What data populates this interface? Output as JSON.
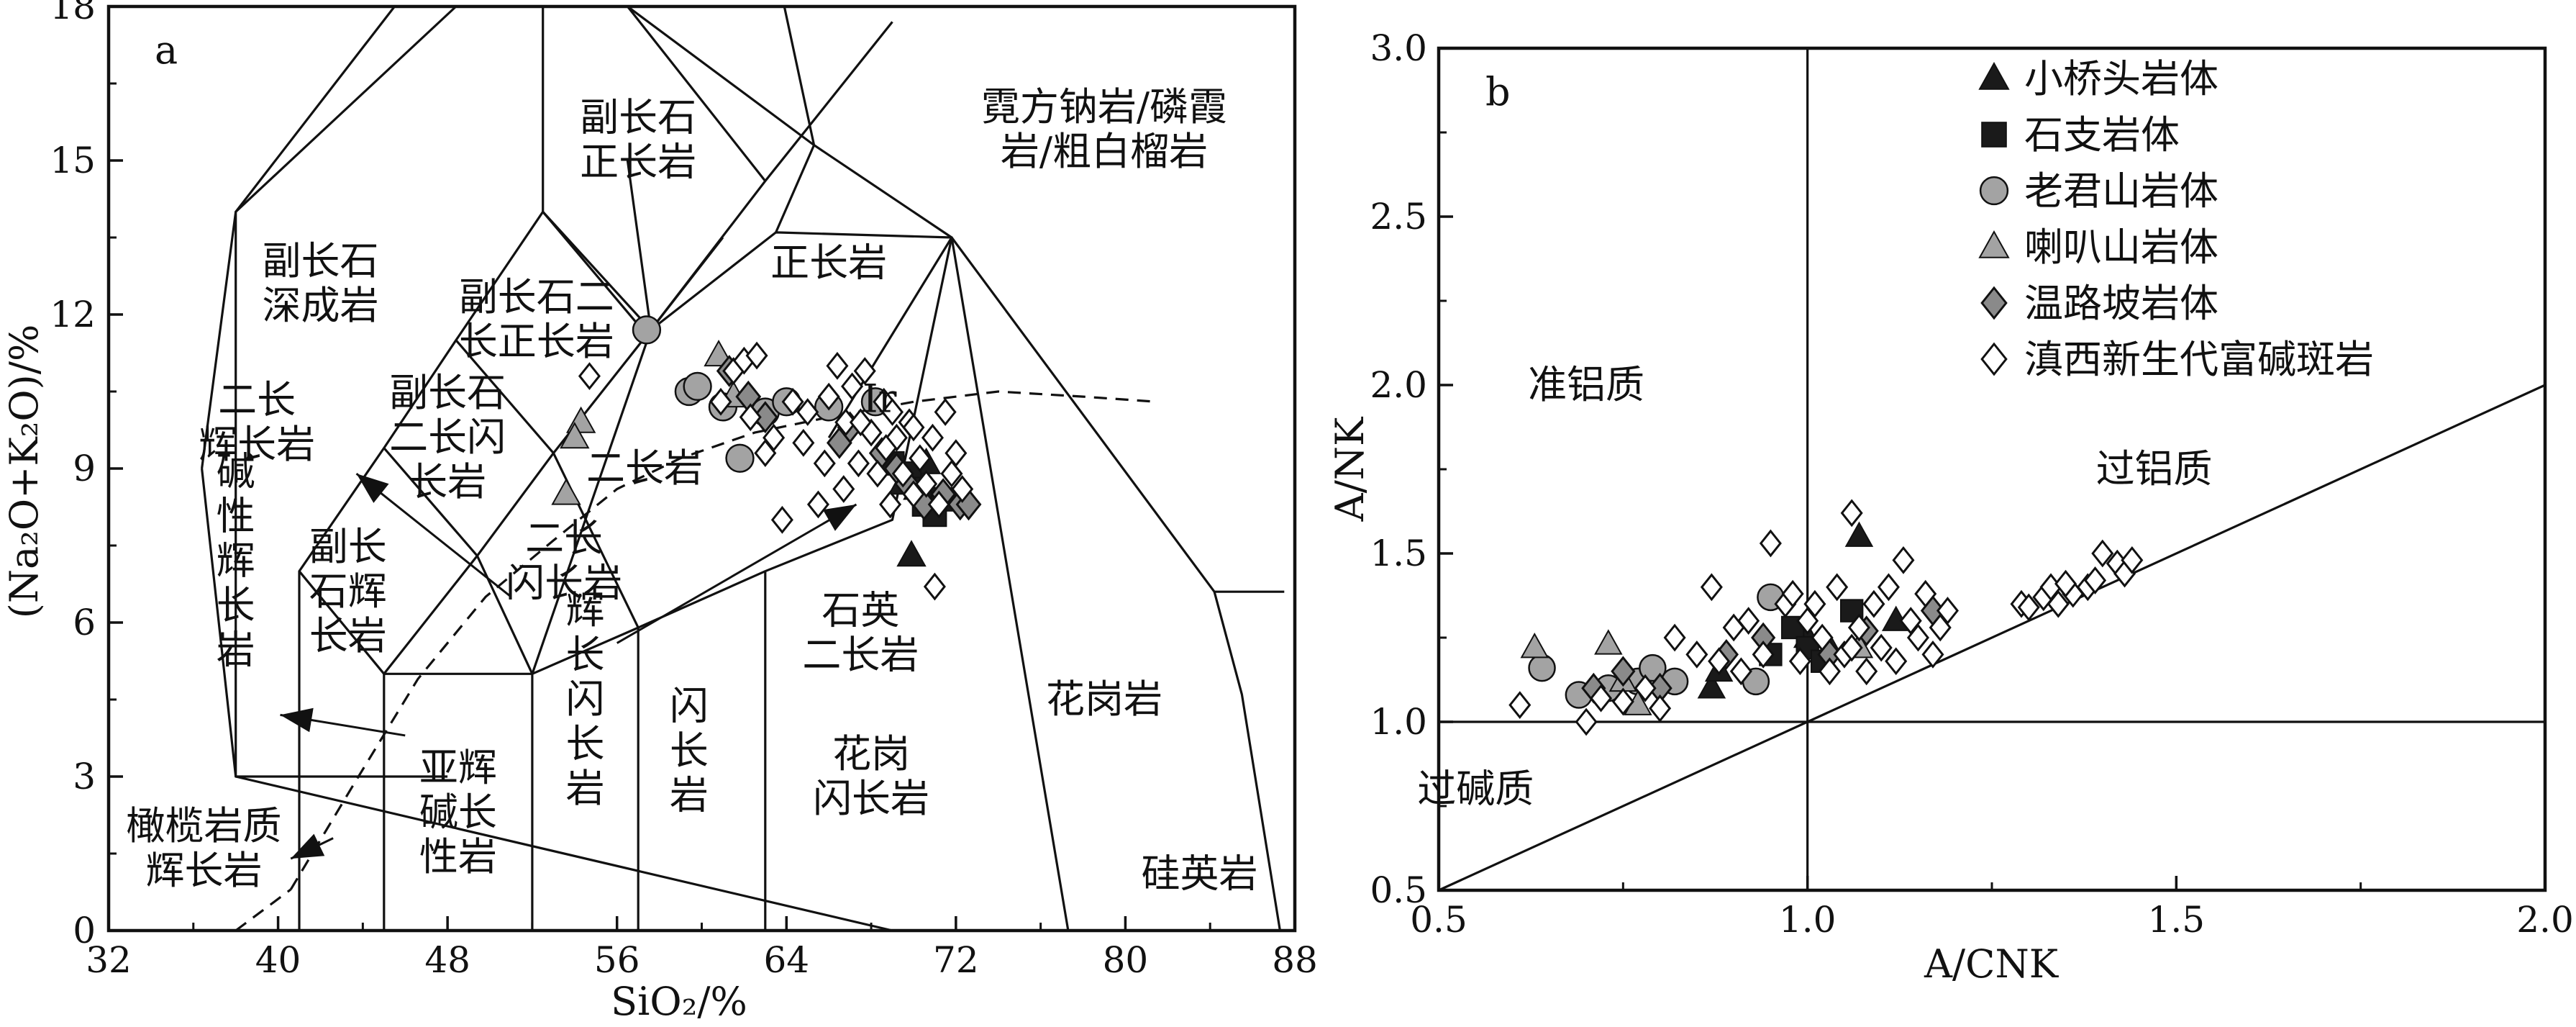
{
  "chart_data": [
    {
      "type": "scatter",
      "panel_label": "a",
      "xlabel": "SiO₂/%",
      "ylabel": "(Na₂O+K₂O)/%",
      "xlim": [
        32,
        88
      ],
      "ylim": [
        0,
        18
      ],
      "xticks": [
        32,
        40,
        48,
        56,
        64,
        72,
        80,
        88
      ],
      "yticks": [
        0,
        3,
        6,
        9,
        12,
        15,
        18
      ],
      "grid": false,
      "fields": [
        {
          "label": "霓方钠岩/磷霞岩/粗白榴岩",
          "lines": [
            "霓方钠岩/磷霞",
            "岩/粗白榴岩"
          ],
          "at": [
            79,
            15.6
          ]
        },
        {
          "label": "副长石正长岩",
          "lines": [
            "副长石",
            "正长岩"
          ],
          "at": [
            57,
            15.4
          ]
        },
        {
          "label": "副长石深成岩",
          "lines": [
            "副长石",
            "深成岩"
          ],
          "at": [
            42,
            12.6
          ]
        },
        {
          "label": "正长岩",
          "lines": [
            "正长岩"
          ],
          "at": [
            66,
            13
          ]
        },
        {
          "label": "副长石二长正长岩",
          "lines": [
            "副长石二",
            "长正长岩"
          ],
          "at": [
            52.2,
            11.9
          ]
        },
        {
          "label": "二长辉长岩",
          "lines": [
            "二长",
            "辉长岩"
          ],
          "at": [
            39,
            9.9
          ]
        },
        {
          "label": "副长石二长闪长岩",
          "lines": [
            "副长石",
            "二长闪",
            "长岩"
          ],
          "at": [
            48,
            9.6
          ]
        },
        {
          "label": "二长岩",
          "lines": [
            "二长岩"
          ],
          "at": [
            57.3,
            9
          ]
        },
        {
          "label": "碱性辉长岩",
          "lines": [
            "碱",
            "性",
            "辉",
            "长",
            "岩"
          ],
          "at": [
            38,
            7.2
          ]
        },
        {
          "label": "副长石辉长岩",
          "lines": [
            "副长",
            "石辉",
            "长岩"
          ],
          "at": [
            43.3,
            6.6
          ]
        },
        {
          "label": "二长闪长岩",
          "lines": [
            "二长",
            "闪长岩"
          ],
          "at": [
            53.5,
            7.2
          ]
        },
        {
          "label": "石英二长岩",
          "lines": [
            "石英",
            "二长岩"
          ],
          "at": [
            67.5,
            5.8
          ]
        },
        {
          "label": "花岗岩",
          "lines": [
            "花岗岩"
          ],
          "at": [
            79,
            4.5
          ]
        },
        {
          "label": "辉长闪长岩",
          "lines": [
            "辉",
            "长",
            "闪",
            "长",
            "岩"
          ],
          "at": [
            54.5,
            4.5
          ]
        },
        {
          "label": "闪长岩",
          "lines": [
            "闪",
            "长",
            "岩"
          ],
          "at": [
            59.4,
            3.5
          ]
        },
        {
          "label": "花岗闪长岩",
          "lines": [
            "花岗",
            "闪长岩"
          ],
          "at": [
            68,
            3
          ]
        },
        {
          "label": "亚辉碱长性岩",
          "lines": [
            "亚辉",
            "碱长",
            "性岩"
          ],
          "at": [
            48.5,
            2.3
          ]
        },
        {
          "label": "橄榄岩质辉长岩",
          "lines": [
            "橄榄岩质",
            "辉长岩"
          ],
          "at": [
            36.5,
            1.6
          ]
        },
        {
          "label": "硅英岩",
          "lines": [
            "硅英岩"
          ],
          "at": [
            83.5,
            1.1
          ]
        }
      ],
      "series": [
        {
          "name": "小桥头岩体",
          "marker": "triangle",
          "color": "#1a1a1a",
          "points": [
            [
              69.5,
              8.7
            ],
            [
              70.0,
              8.9
            ],
            [
              70.6,
              9.1
            ],
            [
              70.2,
              8.6
            ],
            [
              69.9,
              7.3
            ]
          ]
        },
        {
          "name": "石支岩体",
          "marker": "square",
          "color": "#1a1a1a",
          "points": [
            [
              69.8,
              8.9
            ],
            [
              70.5,
              8.3
            ],
            [
              71.3,
              8.4
            ],
            [
              70.3,
              8.6
            ],
            [
              69.0,
              9.1
            ],
            [
              71.0,
              8.1
            ]
          ]
        },
        {
          "name": "老君山岩体",
          "marker": "circle",
          "color": "#a3a3a3",
          "points": [
            [
              57.4,
              11.7
            ],
            [
              59.4,
              10.5
            ],
            [
              59.8,
              10.6
            ],
            [
              61.0,
              10.2
            ],
            [
              61.8,
              9.2
            ],
            [
              63.0,
              10.1
            ],
            [
              64.0,
              10.3
            ],
            [
              66.0,
              10.2
            ],
            [
              68.2,
              10.3
            ]
          ]
        },
        {
          "name": "喇叭山岩体",
          "marker": "triangle",
          "color": "#a3a3a3",
          "points": [
            [
              54.3,
              9.9
            ],
            [
              54.0,
              9.6
            ],
            [
              53.6,
              8.5
            ],
            [
              60.8,
              11.2
            ],
            [
              61.5,
              10.4
            ]
          ]
        },
        {
          "name": "温路坡岩体",
          "marker": "diamond",
          "color": "#8a8a8a",
          "points": [
            [
              61.3,
              10.9
            ],
            [
              62.2,
              10.4
            ],
            [
              63.0,
              10.0
            ],
            [
              68.5,
              9.3
            ],
            [
              69.2,
              9.0
            ],
            [
              69.7,
              8.7
            ],
            [
              70.5,
              8.3
            ],
            [
              71.4,
              8.5
            ],
            [
              72.2,
              8.3
            ],
            [
              72.6,
              8.3
            ],
            [
              66.5,
              9.5
            ],
            [
              67.0,
              9.8
            ]
          ]
        },
        {
          "name": "滇西新生代富碱斑岩",
          "marker": "diamond-open",
          "color": "#ffffff",
          "points": [
            [
              54.7,
              10.8
            ],
            [
              60.9,
              10.3
            ],
            [
              61.5,
              10.9
            ],
            [
              62.0,
              11.1
            ],
            [
              62.3,
              10.0
            ],
            [
              62.6,
              11.2
            ],
            [
              63.0,
              9.3
            ],
            [
              63.4,
              9.6
            ],
            [
              63.8,
              8.0
            ],
            [
              64.3,
              10.3
            ],
            [
              64.8,
              9.5
            ],
            [
              65.0,
              10.1
            ],
            [
              65.5,
              8.3
            ],
            [
              66.0,
              10.4
            ],
            [
              66.4,
              11.0
            ],
            [
              66.8,
              9.9
            ],
            [
              67.1,
              10.6
            ],
            [
              67.4,
              9.1
            ],
            [
              67.7,
              10.9
            ],
            [
              68.0,
              9.7
            ],
            [
              68.3,
              8.9
            ],
            [
              68.6,
              10.3
            ],
            [
              68.9,
              8.3
            ],
            [
              69.2,
              9.6
            ],
            [
              69.5,
              8.9
            ],
            [
              69.8,
              9.9
            ],
            [
              70.0,
              8.5
            ],
            [
              70.3,
              9.2
            ],
            [
              70.6,
              8.7
            ],
            [
              70.9,
              9.6
            ],
            [
              71.2,
              8.3
            ],
            [
              71.5,
              10.1
            ],
            [
              71.8,
              8.9
            ],
            [
              72.0,
              9.3
            ],
            [
              67.5,
              9.9
            ],
            [
              69.0,
              10.1
            ],
            [
              66.7,
              8.6
            ],
            [
              68.7,
              9.4
            ],
            [
              71.0,
              6.7
            ],
            [
              70.0,
              9.8
            ],
            [
              72.3,
              8.6
            ],
            [
              65.8,
              9.1
            ]
          ]
        }
      ],
      "annotations": [
        {
          "text": "Ir",
          "at": [
            67.6,
            10.1
          ]
        }
      ]
    },
    {
      "type": "scatter",
      "panel_label": "b",
      "xlabel": "A/CNK",
      "ylabel": "A/NK",
      "xlim": [
        0.5,
        2.0
      ],
      "ylim": [
        0.5,
        3.0
      ],
      "xticks": [
        0.5,
        1.0,
        1.5,
        2.0
      ],
      "yticks": [
        0.5,
        1.0,
        1.5,
        2.0,
        2.5,
        3.0
      ],
      "grid": false,
      "legend_position": "top-right",
      "fields": [
        {
          "label": "准铝质",
          "at": [
            0.7,
            2.0
          ]
        },
        {
          "label": "过铝质",
          "at": [
            1.47,
            1.75
          ]
        },
        {
          "label": "过碱质",
          "at": [
            0.55,
            0.8
          ]
        }
      ],
      "series": [
        {
          "name": "小桥头岩体",
          "marker": "triangle",
          "color": "#1a1a1a",
          "points": [
            [
              0.87,
              1.1
            ],
            [
              0.88,
              1.15
            ],
            [
              1.0,
              1.25
            ],
            [
              1.07,
              1.55
            ],
            [
              1.12,
              1.3
            ],
            [
              1.03,
              1.22
            ]
          ]
        },
        {
          "name": "石支岩体",
          "marker": "square",
          "color": "#1a1a1a",
          "points": [
            [
              0.98,
              1.28
            ],
            [
              1.0,
              1.22
            ],
            [
              1.06,
              1.33
            ],
            [
              1.02,
              1.18
            ],
            [
              0.95,
              1.2
            ]
          ]
        },
        {
          "name": "老君山岩体",
          "marker": "circle",
          "color": "#a3a3a3",
          "points": [
            [
              0.64,
              1.16
            ],
            [
              0.69,
              1.08
            ],
            [
              0.73,
              1.1
            ],
            [
              0.77,
              1.12
            ],
            [
              0.79,
              1.16
            ],
            [
              0.82,
              1.12
            ],
            [
              0.93,
              1.12
            ],
            [
              0.95,
              1.37
            ]
          ]
        },
        {
          "name": "喇叭山岩体",
          "marker": "triangle",
          "color": "#a3a3a3",
          "points": [
            [
              0.63,
              1.22
            ],
            [
              0.73,
              1.23
            ],
            [
              0.75,
              1.12
            ],
            [
              0.77,
              1.05
            ],
            [
              1.07,
              1.22
            ]
          ]
        },
        {
          "name": "温路坡岩体",
          "marker": "diamond",
          "color": "#8a8a8a",
          "points": [
            [
              0.71,
              1.1
            ],
            [
              0.75,
              1.15
            ],
            [
              0.8,
              1.1
            ],
            [
              0.89,
              1.2
            ],
            [
              0.94,
              1.25
            ],
            [
              1.08,
              1.27
            ],
            [
              1.17,
              1.33
            ],
            [
              1.03,
              1.2
            ]
          ]
        },
        {
          "name": "滇西新生代富碱斑岩",
          "marker": "diamond-open",
          "color": "#ffffff",
          "points": [
            [
              0.61,
              1.05
            ],
            [
              0.7,
              1.0
            ],
            [
              0.72,
              1.07
            ],
            [
              0.75,
              1.06
            ],
            [
              0.78,
              1.1
            ],
            [
              0.8,
              1.04
            ],
            [
              0.82,
              1.25
            ],
            [
              0.85,
              1.2
            ],
            [
              0.87,
              1.4
            ],
            [
              0.88,
              1.18
            ],
            [
              0.9,
              1.28
            ],
            [
              0.91,
              1.15
            ],
            [
              0.92,
              1.3
            ],
            [
              0.94,
              1.2
            ],
            [
              0.95,
              1.53
            ],
            [
              0.97,
              1.35
            ],
            [
              0.99,
              1.18
            ],
            [
              1.0,
              1.3
            ],
            [
              1.02,
              1.25
            ],
            [
              1.03,
              1.15
            ],
            [
              1.04,
              1.4
            ],
            [
              1.05,
              1.2
            ],
            [
              1.06,
              1.62
            ],
            [
              1.07,
              1.28
            ],
            [
              1.08,
              1.15
            ],
            [
              1.09,
              1.35
            ],
            [
              1.1,
              1.22
            ],
            [
              1.12,
              1.18
            ],
            [
              1.13,
              1.48
            ],
            [
              1.14,
              1.3
            ],
            [
              1.15,
              1.25
            ],
            [
              1.16,
              1.38
            ],
            [
              1.17,
              1.2
            ],
            [
              1.18,
              1.28
            ],
            [
              1.19,
              1.33
            ],
            [
              1.06,
              1.22
            ],
            [
              0.98,
              1.38
            ],
            [
              1.01,
              1.35
            ],
            [
              1.11,
              1.4
            ],
            [
              1.29,
              1.35
            ],
            [
              1.3,
              1.34
            ],
            [
              1.32,
              1.37
            ],
            [
              1.33,
              1.4
            ],
            [
              1.34,
              1.35
            ],
            [
              1.36,
              1.38
            ],
            [
              1.38,
              1.4
            ],
            [
              1.39,
              1.42
            ],
            [
              1.4,
              1.5
            ],
            [
              1.42,
              1.47
            ],
            [
              1.43,
              1.44
            ],
            [
              1.44,
              1.48
            ],
            [
              1.35,
              1.41
            ]
          ]
        }
      ]
    }
  ]
}
